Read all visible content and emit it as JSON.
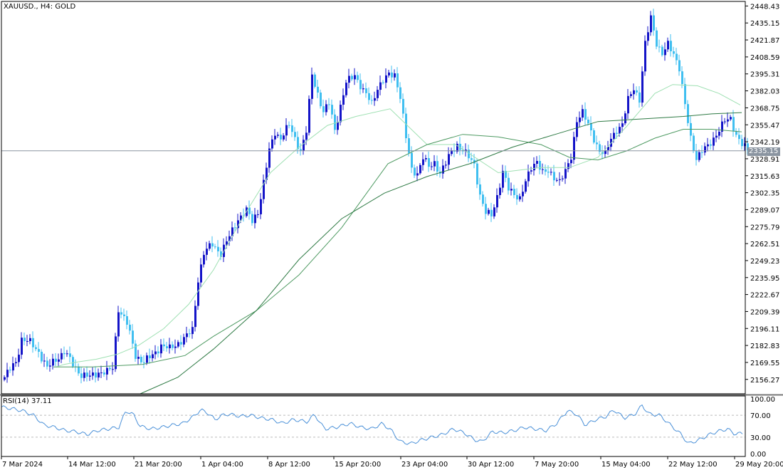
{
  "header": {
    "symbol_line": "XAUUSD., H4:  GOLD"
  },
  "rsi": {
    "label": "RSI(14) 37.11",
    "value": 37.11,
    "levels": [
      30,
      70
    ],
    "scale_labels": [
      "100.00",
      "70.00",
      "30.00",
      "0.00"
    ]
  },
  "current_price": "2335.15",
  "colors": {
    "bull_candle": "#1414c8",
    "bear_candle": "#40bff0",
    "ma_fast": "#9ee0b2",
    "ma_mid": "#4e9a62",
    "ma_slow": "#2e7a44",
    "rsi_line": "#4a90d8",
    "price_line": "#8a94a0"
  },
  "chart_data": {
    "type": "candlestick",
    "symbol": "XAUUSD.",
    "timeframe": "H4",
    "instrument": "GOLD",
    "ylim": [
      2145,
      2452
    ],
    "y_ticks": [
      "2448.43",
      "2435.15",
      "2421.87",
      "2408.59",
      "2395.31",
      "2382.03",
      "2368.75",
      "2355.47",
      "2342.19",
      "2328.91",
      "2315.63",
      "2302.35",
      "2289.07",
      "2275.79",
      "2262.51",
      "2249.23",
      "2235.95",
      "2222.67",
      "2209.39",
      "2196.11",
      "2182.83",
      "2169.55",
      "2156.27"
    ],
    "x_ticks": [
      "7 Mar 2024",
      "14 Mar 12:00",
      "21 Mar 20:00",
      "1 Apr 04:00",
      "8 Apr 12:00",
      "15 Apr 20:00",
      "23 Apr 04:00",
      "30 Apr 12:00",
      "7 May 20:00",
      "15 May 04:00",
      "22 May 12:00",
      "29 May 20:00"
    ],
    "current_price": 2335.15,
    "close_anchors": [
      [
        0,
        2158
      ],
      [
        4,
        2170
      ],
      [
        6,
        2188
      ],
      [
        9,
        2185
      ],
      [
        12,
        2178
      ],
      [
        15,
        2165
      ],
      [
        18,
        2172
      ],
      [
        21,
        2178
      ],
      [
        24,
        2168
      ],
      [
        27,
        2160
      ],
      [
        30,
        2158
      ],
      [
        33,
        2162
      ],
      [
        36,
        2162
      ],
      [
        38,
        2165
      ],
      [
        40,
        2212
      ],
      [
        43,
        2200
      ],
      [
        46,
        2175
      ],
      [
        49,
        2170
      ],
      [
        52,
        2175
      ],
      [
        55,
        2183
      ],
      [
        58,
        2180
      ],
      [
        61,
        2185
      ],
      [
        64,
        2190
      ],
      [
        66,
        2195
      ],
      [
        68,
        2235
      ],
      [
        70,
        2255
      ],
      [
        73,
        2262
      ],
      [
        76,
        2255
      ],
      [
        79,
        2268
      ],
      [
        82,
        2282
      ],
      [
        85,
        2288
      ],
      [
        87,
        2280
      ],
      [
        89,
        2288
      ],
      [
        91,
        2310
      ],
      [
        93,
        2335
      ],
      [
        95,
        2350
      ],
      [
        97,
        2345
      ],
      [
        100,
        2355
      ],
      [
        102,
        2345
      ],
      [
        104,
        2335
      ],
      [
        106,
        2350
      ],
      [
        108,
        2395
      ],
      [
        110,
        2380
      ],
      [
        112,
        2365
      ],
      [
        114,
        2372
      ],
      [
        116,
        2352
      ],
      [
        118,
        2370
      ],
      [
        120,
        2388
      ],
      [
        123,
        2395
      ],
      [
        126,
        2382
      ],
      [
        129,
        2372
      ],
      [
        131,
        2385
      ],
      [
        133,
        2390
      ],
      [
        135,
        2394
      ],
      [
        137,
        2395
      ],
      [
        139,
        2378
      ],
      [
        141,
        2345
      ],
      [
        143,
        2320
      ],
      [
        145,
        2318
      ],
      [
        147,
        2330
      ],
      [
        149,
        2322
      ],
      [
        151,
        2326
      ],
      [
        153,
        2318
      ],
      [
        155,
        2325
      ],
      [
        157,
        2335
      ],
      [
        159,
        2340
      ],
      [
        161,
        2335
      ],
      [
        163,
        2330
      ],
      [
        165,
        2325
      ],
      [
        167,
        2300
      ],
      [
        169,
        2286
      ],
      [
        171,
        2285
      ],
      [
        173,
        2300
      ],
      [
        175,
        2318
      ],
      [
        177,
        2305
      ],
      [
        179,
        2302
      ],
      [
        181,
        2298
      ],
      [
        183,
        2310
      ],
      [
        185,
        2322
      ],
      [
        187,
        2328
      ],
      [
        189,
        2318
      ],
      [
        191,
        2318
      ],
      [
        193,
        2315
      ],
      [
        195,
        2312
      ],
      [
        197,
        2318
      ],
      [
        199,
        2330
      ],
      [
        201,
        2360
      ],
      [
        203,
        2365
      ],
      [
        205,
        2355
      ],
      [
        207,
        2345
      ],
      [
        209,
        2335
      ],
      [
        211,
        2332
      ],
      [
        213,
        2345
      ],
      [
        215,
        2352
      ],
      [
        217,
        2355
      ],
      [
        219,
        2375
      ],
      [
        221,
        2385
      ],
      [
        223,
        2375
      ],
      [
        225,
        2418
      ],
      [
        227,
        2440
      ],
      [
        229,
        2420
      ],
      [
        231,
        2410
      ],
      [
        233,
        2418
      ],
      [
        235,
        2412
      ],
      [
        237,
        2400
      ],
      [
        239,
        2370
      ],
      [
        241,
        2345
      ],
      [
        243,
        2330
      ],
      [
        245,
        2335
      ],
      [
        247,
        2338
      ],
      [
        249,
        2345
      ],
      [
        251,
        2352
      ],
      [
        253,
        2358
      ],
      [
        255,
        2360
      ],
      [
        257,
        2348
      ],
      [
        259,
        2340
      ],
      [
        261,
        2335
      ]
    ],
    "moving_averages": [
      {
        "points": [
          [
            79,
            2166
          ],
          [
            90,
            2168
          ],
          [
            110,
            2170
          ],
          [
            135,
            2172
          ],
          [
            165,
            2176
          ],
          [
            195,
            2183
          ],
          [
            230,
            2196
          ],
          [
            265,
            2215
          ],
          [
            300,
            2242
          ],
          [
            340,
            2282
          ],
          [
            380,
            2318
          ],
          [
            420,
            2338
          ],
          [
            460,
            2355
          ],
          [
            500,
            2362
          ],
          [
            548,
            2368
          ],
          [
            600,
            2340
          ],
          [
            640,
            2340
          ],
          [
            700,
            2318
          ],
          [
            760,
            2322
          ],
          [
            800,
            2322
          ],
          [
            840,
            2330
          ],
          [
            880,
            2354
          ],
          [
            920,
            2380
          ],
          [
            945,
            2387
          ],
          [
            980,
            2386
          ],
          [
            1010,
            2380
          ],
          [
            1040,
            2371
          ]
        ]
      },
      {
        "points": [
          [
            75,
            2166
          ],
          [
            130,
            2166
          ],
          [
            200,
            2168
          ],
          [
            260,
            2175
          ],
          [
            300,
            2190
          ],
          [
            360,
            2210
          ],
          [
            420,
            2238
          ],
          [
            480,
            2275
          ],
          [
            545,
            2325
          ],
          [
            600,
            2340
          ],
          [
            650,
            2348
          ],
          [
            700,
            2346
          ],
          [
            760,
            2340
          ],
          [
            800,
            2330
          ],
          [
            840,
            2328
          ],
          [
            880,
            2335
          ],
          [
            920,
            2345
          ],
          [
            960,
            2352
          ],
          [
            1000,
            2352
          ],
          [
            1042,
            2350
          ]
        ]
      },
      {
        "points": [
          [
            197,
            2145
          ],
          [
            250,
            2158
          ],
          [
            300,
            2180
          ],
          [
            360,
            2210
          ],
          [
            420,
            2250
          ],
          [
            480,
            2282
          ],
          [
            540,
            2302
          ],
          [
            600,
            2315
          ],
          [
            660,
            2325
          ],
          [
            720,
            2338
          ],
          [
            780,
            2348
          ],
          [
            840,
            2358
          ],
          [
            900,
            2360
          ],
          [
            960,
            2362
          ],
          [
            1000,
            2364
          ],
          [
            1042,
            2365
          ]
        ]
      }
    ],
    "rsi_anchors": [
      [
        0,
        85
      ],
      [
        15,
        82
      ],
      [
        30,
        78
      ],
      [
        45,
        70
      ],
      [
        60,
        52
      ],
      [
        75,
        48
      ],
      [
        90,
        42
      ],
      [
        105,
        40
      ],
      [
        120,
        35
      ],
      [
        135,
        42
      ],
      [
        150,
        45
      ],
      [
        165,
        48
      ],
      [
        175,
        78
      ],
      [
        185,
        72
      ],
      [
        195,
        50
      ],
      [
        210,
        45
      ],
      [
        225,
        48
      ],
      [
        240,
        52
      ],
      [
        255,
        55
      ],
      [
        270,
        68
      ],
      [
        280,
        80
      ],
      [
        290,
        74
      ],
      [
        300,
        62
      ],
      [
        310,
        70
      ],
      [
        320,
        72
      ],
      [
        335,
        68
      ],
      [
        350,
        70
      ],
      [
        365,
        65
      ],
      [
        380,
        62
      ],
      [
        395,
        55
      ],
      [
        410,
        62
      ],
      [
        420,
        60
      ],
      [
        430,
        58
      ],
      [
        440,
        72
      ],
      [
        448,
        55
      ],
      [
        455,
        45
      ],
      [
        470,
        48
      ],
      [
        490,
        55
      ],
      [
        505,
        48
      ],
      [
        520,
        45
      ],
      [
        535,
        55
      ],
      [
        548,
        42
      ],
      [
        560,
        22
      ],
      [
        575,
        18
      ],
      [
        590,
        25
      ],
      [
        605,
        30
      ],
      [
        620,
        35
      ],
      [
        635,
        45
      ],
      [
        650,
        38
      ],
      [
        665,
        25
      ],
      [
        675,
        22
      ],
      [
        690,
        40
      ],
      [
        705,
        38
      ],
      [
        720,
        42
      ],
      [
        735,
        48
      ],
      [
        750,
        45
      ],
      [
        765,
        42
      ],
      [
        780,
        55
      ],
      [
        795,
        78
      ],
      [
        808,
        72
      ],
      [
        820,
        52
      ],
      [
        835,
        62
      ],
      [
        850,
        68
      ],
      [
        860,
        80
      ],
      [
        875,
        65
      ],
      [
        890,
        72
      ],
      [
        900,
        88
      ],
      [
        910,
        72
      ],
      [
        925,
        70
      ],
      [
        940,
        52
      ],
      [
        955,
        35
      ],
      [
        965,
        18
      ],
      [
        980,
        25
      ],
      [
        995,
        35
      ],
      [
        1005,
        40
      ],
      [
        1020,
        45
      ],
      [
        1030,
        36
      ],
      [
        1042,
        37
      ]
    ]
  }
}
